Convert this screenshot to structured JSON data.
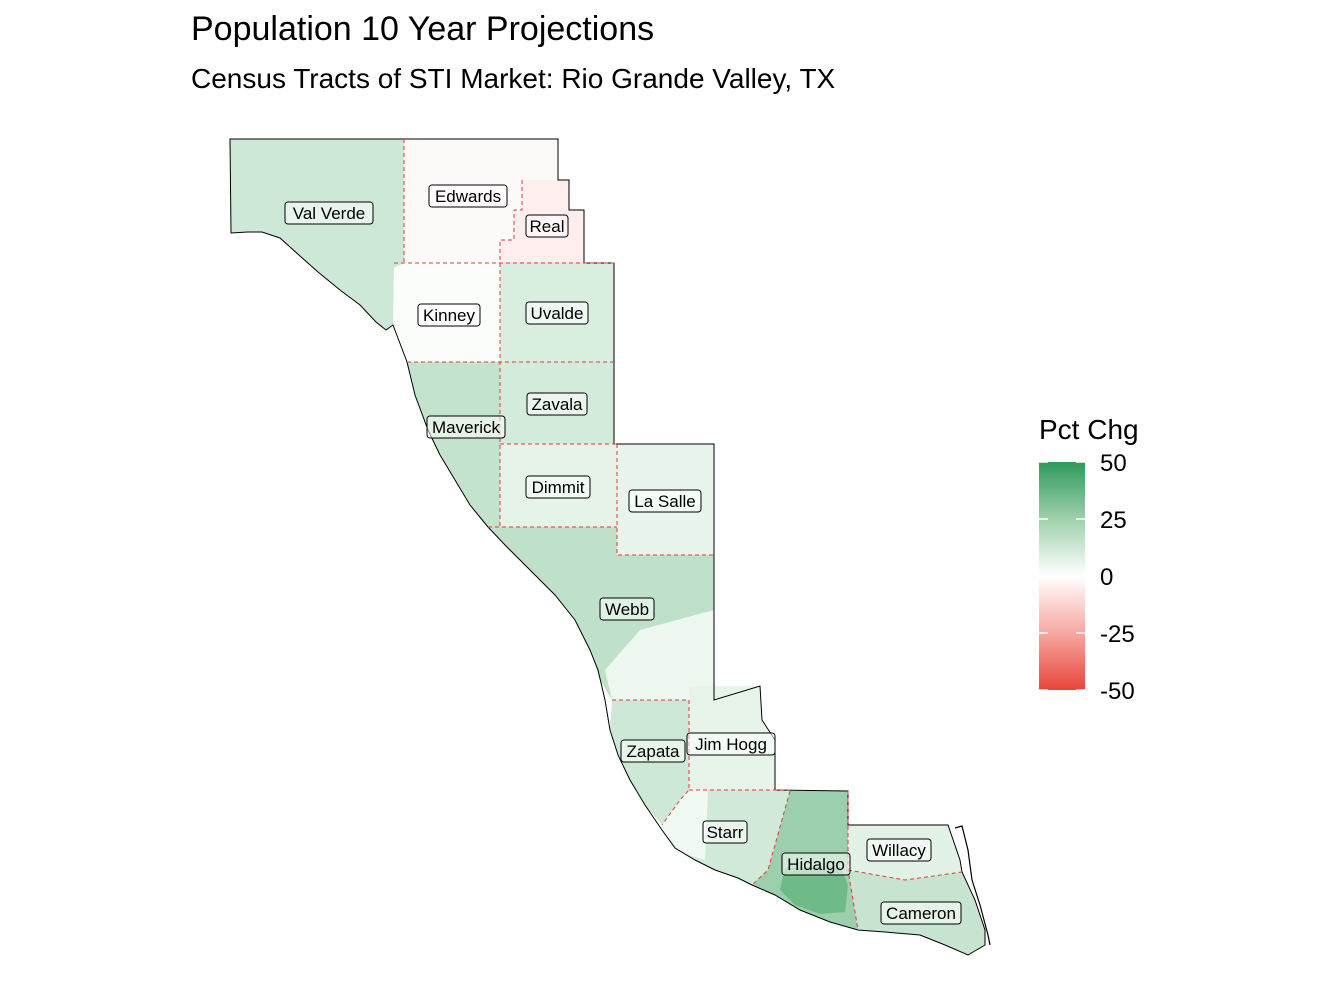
{
  "title": "Population 10 Year Projections",
  "subtitle": "Census Tracts of STI Market: Rio Grande Valley, TX",
  "legend": {
    "title": "Pct Chg",
    "ticks": [
      {
        "value": 50,
        "label": "50"
      },
      {
        "value": 25,
        "label": "25"
      },
      {
        "value": 0,
        "label": "0"
      },
      {
        "value": -25,
        "label": "-25"
      },
      {
        "value": -50,
        "label": "-50"
      }
    ],
    "colors": {
      "high": "#2e9a5a",
      "mid": "#ffffff",
      "low": "#e8443a"
    },
    "range": [
      -50,
      50
    ]
  },
  "counties": [
    {
      "id": "val-verde",
      "name": "Val Verde"
    },
    {
      "id": "edwards",
      "name": "Edwards"
    },
    {
      "id": "real",
      "name": "Real"
    },
    {
      "id": "kinney",
      "name": "Kinney"
    },
    {
      "id": "uvalde",
      "name": "Uvalde"
    },
    {
      "id": "maverick",
      "name": "Maverick"
    },
    {
      "id": "zavala",
      "name": "Zavala"
    },
    {
      "id": "dimmit",
      "name": "Dimmit"
    },
    {
      "id": "la-salle",
      "name": "La Salle"
    },
    {
      "id": "webb",
      "name": "Webb"
    },
    {
      "id": "zapata",
      "name": "Zapata"
    },
    {
      "id": "jim-hogg",
      "name": "Jim Hogg"
    },
    {
      "id": "starr",
      "name": "Starr"
    },
    {
      "id": "hidalgo",
      "name": "Hidalgo"
    },
    {
      "id": "willacy",
      "name": "Willacy"
    },
    {
      "id": "cameron",
      "name": "Cameron"
    }
  ]
}
